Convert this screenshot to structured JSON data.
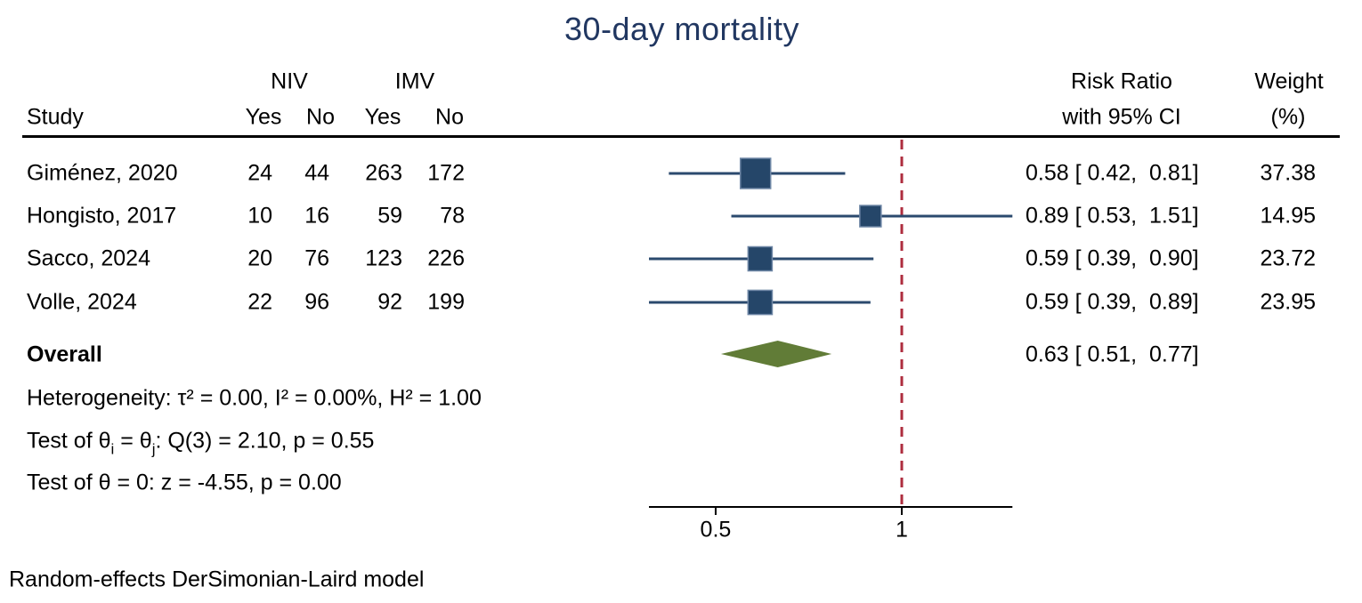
{
  "title": "30-day mortality",
  "header": {
    "study": "Study",
    "group1": "NIV",
    "group2": "IMV",
    "col_yes": "Yes",
    "col_no": "No",
    "rr_line1": "Risk Ratio",
    "rr_line2": "with 95% CI",
    "weight_line1": "Weight",
    "weight_line2": "(%)"
  },
  "stats": {
    "overall_label": "Overall",
    "overall_rr_label": "0.63 [ 0.51,  0.77]",
    "heterogeneity": "Heterogeneity: τ² = 0.00, I² = 0.00%, H² = 1.00",
    "q_test": {
      "p1": "Test of θ",
      "s1": "i",
      "p2": " = θ",
      "s2": "j",
      "p3": ": Q(3) = 2.10, p = 0.55"
    },
    "z_test": "Test of θ = 0: z = -4.55, p = 0.00"
  },
  "axis": {
    "tick_labels": [
      "0.5",
      "1"
    ]
  },
  "footer": "Random-effects DerSimonian-Laird model",
  "colors": {
    "title": "#213761",
    "marker_fill": "#254669",
    "marker_border": "#6f87a6",
    "ci_line": "#2b4a6e",
    "diamond": "#617c37",
    "ref_line": "#ae2c3e",
    "axis": "#000000"
  },
  "chart_data": {
    "type": "forest",
    "title": "30-day mortality",
    "x_scale": "log",
    "x_ticks": [
      0.5,
      1
    ],
    "x_range": [
      0.39,
      1.51
    ],
    "reference_line": 1,
    "effect_measure": "Risk Ratio",
    "studies": [
      {
        "name": "Giménez, 2020",
        "niv_yes": 24,
        "niv_no": 44,
        "imv_yes": 263,
        "imv_no": 172,
        "rr": 0.58,
        "ci_low": 0.42,
        "ci_high": 0.81,
        "weight": 37.38,
        "rr_label": "0.58 [ 0.42,  0.81]",
        "weight_label": "37.38"
      },
      {
        "name": "Hongisto, 2017",
        "niv_yes": 10,
        "niv_no": 16,
        "imv_yes": 59,
        "imv_no": 78,
        "rr": 0.89,
        "ci_low": 0.53,
        "ci_high": 1.51,
        "weight": 14.95,
        "rr_label": "0.89 [ 0.53,  1.51]",
        "weight_label": "14.95"
      },
      {
        "name": "Sacco, 2024",
        "niv_yes": 20,
        "niv_no": 76,
        "imv_yes": 123,
        "imv_no": 226,
        "rr": 0.59,
        "ci_low": 0.39,
        "ci_high": 0.9,
        "weight": 23.72,
        "rr_label": "0.59 [ 0.39,  0.90]",
        "weight_label": "23.72"
      },
      {
        "name": "Volle, 2024",
        "niv_yes": 22,
        "niv_no": 96,
        "imv_yes": 92,
        "imv_no": 199,
        "rr": 0.59,
        "ci_low": 0.39,
        "ci_high": 0.89,
        "weight": 23.95,
        "rr_label": "0.59 [ 0.39,  0.89]",
        "weight_label": "23.95"
      }
    ],
    "overall": {
      "rr": 0.63,
      "ci_low": 0.51,
      "ci_high": 0.77,
      "label": "0.63 [ 0.51,  0.77]"
    },
    "model_note": "Random-effects DerSimonian-Laird model"
  }
}
